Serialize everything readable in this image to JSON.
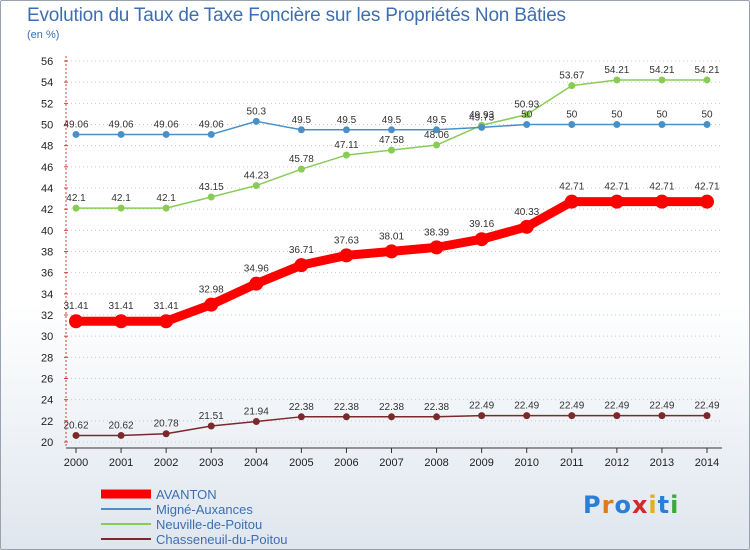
{
  "chart_data": {
    "type": "line",
    "title": "Evolution du Taux de Taxe Foncière sur les Propriétés Non Bâties",
    "subtitle": "(en %)",
    "x": [
      "2000",
      "2001",
      "2002",
      "2003",
      "2004",
      "2005",
      "2006",
      "2007",
      "2008",
      "2009",
      "2010",
      "2011",
      "2012",
      "2013",
      "2014"
    ],
    "ylim": [
      20,
      56
    ],
    "yticks": [
      20,
      22,
      24,
      26,
      28,
      30,
      32,
      34,
      36,
      38,
      40,
      42,
      44,
      46,
      48,
      50,
      52,
      54,
      56
    ],
    "grid": "horizontal dotted",
    "legend": "bottom-left",
    "series": [
      {
        "name": "AVANTON",
        "color": "#ff0000",
        "values": [
          31.41,
          31.41,
          31.41,
          32.98,
          34.96,
          36.71,
          37.63,
          38.01,
          38.39,
          39.16,
          40.33,
          42.71,
          42.71,
          42.71,
          42.71
        ],
        "labels": [
          "31.41",
          "31.41",
          "31.41",
          "32.98",
          "34.96",
          "36.71",
          "37.63",
          "38.01",
          "38.39",
          "39.16",
          "40.33",
          "42.71",
          "42.71",
          "42.71",
          "42.71"
        ]
      },
      {
        "name": "Migné-Auxances",
        "color": "#4a90c8",
        "values": [
          49.06,
          49.06,
          49.06,
          49.06,
          50.3,
          49.5,
          49.5,
          49.5,
          49.5,
          49.73,
          50,
          50,
          50,
          50,
          50
        ],
        "labels": [
          "49.06",
          "49.06",
          "49.06",
          "49.06",
          "50.3",
          "49.5",
          "49.5",
          "49.5",
          "49.5",
          "49.73",
          "50",
          "50",
          "50",
          "50",
          "50"
        ]
      },
      {
        "name": "Neuville-de-Poitou",
        "color": "#88cc55",
        "values": [
          42.1,
          42.1,
          42.1,
          43.15,
          44.23,
          45.78,
          47.11,
          47.58,
          48.06,
          49.93,
          50.93,
          53.67,
          54.21,
          54.21,
          54.21
        ],
        "labels": [
          "42.1",
          "42.1",
          "42.1",
          "43.15",
          "44.23",
          "45.78",
          "47.11",
          "47.58",
          "48.06",
          "49.93",
          "50.93",
          "53.67",
          "54.21",
          "54.21",
          "54.21"
        ]
      },
      {
        "name": "Chasseneuil-du-Poitou",
        "color": "#7a2a2a",
        "values": [
          20.62,
          20.62,
          20.78,
          21.51,
          21.94,
          22.38,
          22.38,
          22.38,
          22.38,
          22.49,
          22.49,
          22.49,
          22.49,
          22.49,
          22.49
        ],
        "labels": [
          "20.62",
          "20.62",
          "20.78",
          "21.51",
          "21.94",
          "22.38",
          "22.38",
          "22.38",
          "22.38",
          "22.49",
          "22.49",
          "22.49",
          "22.49",
          "22.49",
          "22.49"
        ]
      }
    ]
  },
  "logo": {
    "letters": [
      "P",
      "r",
      "o",
      "x",
      "i",
      "t",
      "i"
    ],
    "colors": [
      "#2a7fd4",
      "#e07a1a",
      "#2a7fd4",
      "#d02a2a",
      "#e0b020",
      "#2a7fd4",
      "#3aaa3a"
    ]
  }
}
